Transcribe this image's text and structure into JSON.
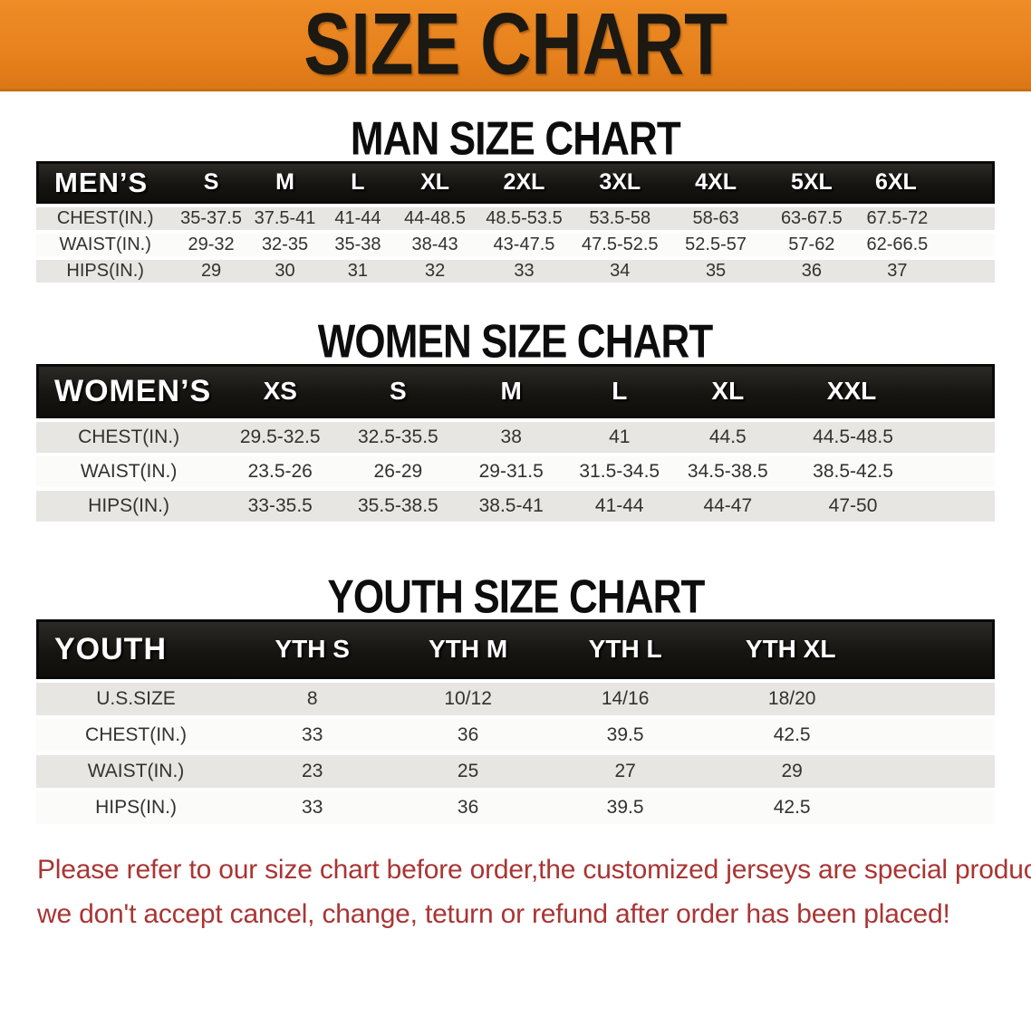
{
  "banner": {
    "title": "SIZE CHART",
    "bg_color": "#E8831E",
    "text_color": "#1C1812"
  },
  "sections": [
    {
      "heading": "MAN SIZE CHART",
      "table": {
        "header": [
          "MEN’S",
          "S",
          "M",
          "L",
          "XL",
          "2XL",
          "3XL",
          "4XL",
          "5XL",
          "6XL"
        ],
        "rows": [
          [
            "CHEST(IN.)",
            "35-37.5",
            "37.5-41",
            "41-44",
            "44-48.5",
            "48.5-53.5",
            "53.5-58",
            "58-63",
            "63-67.5",
            "67.5-72"
          ],
          [
            "WAIST(IN.)",
            "29-32",
            "32-35",
            "35-38",
            "38-43",
            "43-47.5",
            "47.5-52.5",
            "52.5-57",
            "57-62",
            "62-66.5"
          ],
          [
            "HIPS(IN.)",
            "29",
            "30",
            "31",
            "32",
            "33",
            "34",
            "35",
            "36",
            "37"
          ]
        ]
      }
    },
    {
      "heading": "WOMEN SIZE CHART",
      "table": {
        "header": [
          "WOMEN’S",
          "XS",
          "S",
          "M",
          "L",
          "XL",
          "XXL"
        ],
        "rows": [
          [
            "CHEST(IN.)",
            "29.5-32.5",
            "32.5-35.5",
            "38",
            "41",
            "44.5",
            "44.5-48.5"
          ],
          [
            "WAIST(IN.)",
            "23.5-26",
            "26-29",
            "29-31.5",
            "31.5-34.5",
            "34.5-38.5",
            "38.5-42.5"
          ],
          [
            "HIPS(IN.)",
            "33-35.5",
            "35.5-38.5",
            "38.5-41",
            "41-44",
            "44-47",
            "47-50"
          ]
        ]
      }
    },
    {
      "heading": "YOUTH SIZE CHART",
      "table": {
        "header": [
          "YOUTH",
          "YTH S",
          "YTH M",
          "YTH L",
          "YTH XL"
        ],
        "rows": [
          [
            "U.S.SIZE",
            "8",
            "10/12",
            "14/16",
            "18/20"
          ],
          [
            "CHEST(IN.)",
            "33",
            "36",
            "39.5",
            "42.5"
          ],
          [
            "WAIST(IN.)",
            "23",
            "25",
            "27",
            "29"
          ],
          [
            "HIPS(IN.)",
            "33",
            "36",
            "39.5",
            "42.5"
          ]
        ]
      }
    }
  ],
  "notice": {
    "line1": "Please refer to our size chart before order,the customized jerseys are special products,",
    "line2": "we don't accept cancel, change, teturn or refund after order has been placed!",
    "text_color": "#A93534"
  },
  "row_colors": {
    "shaded": "#E7E6E3",
    "plain": "#FBFBF9",
    "header_bg": "#161511"
  }
}
